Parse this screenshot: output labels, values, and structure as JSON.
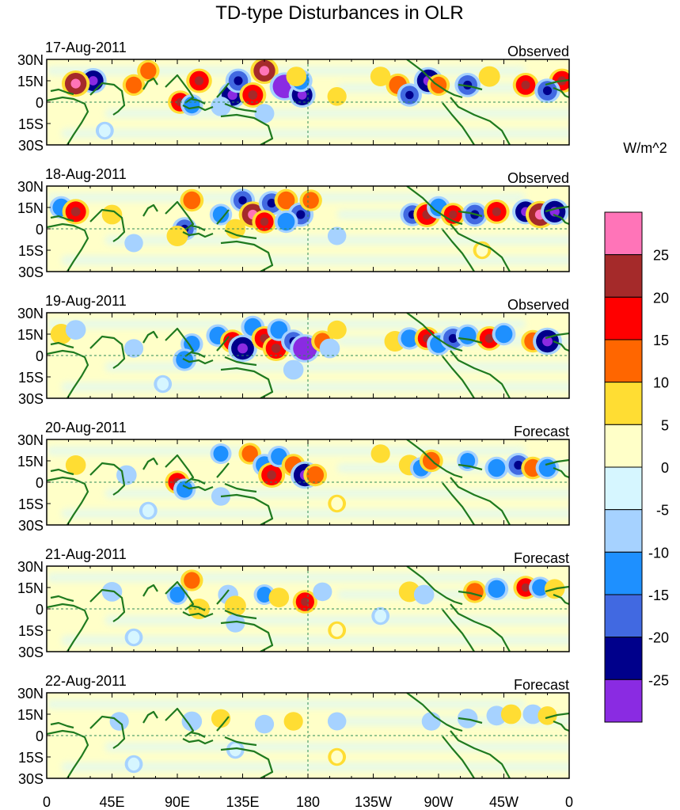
{
  "chart_data": {
    "type": "heatmap",
    "title": "TD-type Disturbances in OLR",
    "colorbar": {
      "units": "W/m^2",
      "tick_labels": [
        "25",
        "20",
        "15",
        "10",
        "5",
        "0",
        "-5",
        "-10",
        "-15",
        "-20",
        "-25"
      ],
      "levels": [
        {
          "range": "> 25",
          "color": "#ff74b8"
        },
        {
          "range": "20 to 25",
          "color": "#a52a2a"
        },
        {
          "range": "15 to 20",
          "color": "#ff0000"
        },
        {
          "range": "10 to 15",
          "color": "#ff6600"
        },
        {
          "range": "5 to 10",
          "color": "#ffdd33"
        },
        {
          "range": "0 to 5",
          "color": "#ffffc8"
        },
        {
          "range": "-5 to 0",
          "color": "#d6f6ff"
        },
        {
          "range": "-10 to -5",
          "color": "#a6d2ff"
        },
        {
          "range": "-15 to -10",
          "color": "#1e90ff"
        },
        {
          "range": "-20 to -15",
          "color": "#4169e1"
        },
        {
          "range": "-25 to -20",
          "color": "#00008b"
        },
        {
          "range": "< -25",
          "color": "#8a2be2"
        }
      ]
    },
    "x_ticks": [
      "0",
      "45E",
      "90E",
      "135E",
      "180",
      "135W",
      "90W",
      "45W",
      "0"
    ],
    "y_ticks": [
      "30N",
      "15N",
      "0",
      "15S",
      "30S"
    ],
    "lon_range": [
      0,
      360
    ],
    "lat_range": [
      -30,
      30
    ],
    "panels": [
      {
        "date": "17-Aug-2011",
        "kind": "Observed",
        "cells": [
          [
            32,
            15,
            -20
          ],
          [
            20,
            13,
            22
          ],
          [
            60,
            12,
            12
          ],
          [
            105,
            15,
            18
          ],
          [
            128,
            5,
            -22
          ],
          [
            132,
            15,
            -18
          ],
          [
            142,
            5,
            20
          ],
          [
            150,
            22,
            22
          ],
          [
            164,
            11,
            -26
          ],
          [
            176,
            5,
            -20
          ],
          [
            175,
            15,
            -14
          ],
          [
            242,
            12,
            15
          ],
          [
            250,
            5,
            -16
          ],
          [
            263,
            15,
            -24
          ],
          [
            270,
            12,
            12
          ],
          [
            290,
            12,
            -18
          ],
          [
            330,
            12,
            18
          ],
          [
            355,
            15,
            18
          ],
          [
            345,
            8,
            -18
          ],
          [
            92,
            0,
            16
          ],
          [
            100,
            -2,
            -12
          ],
          [
            120,
            -3,
            -8
          ],
          [
            70,
            22,
            12
          ],
          [
            150,
            -8,
            -7
          ],
          [
            200,
            4,
            6
          ],
          [
            40,
            -20,
            -4
          ],
          [
            230,
            18,
            8
          ],
          [
            305,
            18,
            10
          ],
          [
            172,
            18,
            8
          ]
        ]
      },
      {
        "date": "18-Aug-2011",
        "kind": "Observed",
        "cells": [
          [
            10,
            15,
            -14
          ],
          [
            20,
            12,
            20
          ],
          [
            45,
            10,
            8
          ],
          [
            100,
            20,
            14
          ],
          [
            120,
            10,
            -12
          ],
          [
            135,
            20,
            -16
          ],
          [
            142,
            10,
            22
          ],
          [
            155,
            18,
            -18
          ],
          [
            150,
            5,
            16
          ],
          [
            165,
            20,
            14
          ],
          [
            175,
            10,
            -18
          ],
          [
            182,
            20,
            12
          ],
          [
            165,
            5,
            -14
          ],
          [
            252,
            10,
            -16
          ],
          [
            262,
            10,
            20
          ],
          [
            270,
            15,
            -14
          ],
          [
            280,
            10,
            16
          ],
          [
            295,
            10,
            -18
          ],
          [
            310,
            12,
            18
          ],
          [
            330,
            12,
            -20
          ],
          [
            340,
            10,
            24
          ],
          [
            350,
            12,
            -22
          ],
          [
            95,
            0,
            -16
          ],
          [
            90,
            -5,
            10
          ],
          [
            130,
            0,
            8
          ],
          [
            60,
            -10,
            -5
          ],
          [
            300,
            -15,
            4
          ],
          [
            200,
            -5,
            -5
          ]
        ]
      },
      {
        "date": "19-Aug-2011",
        "kind": "Observed",
        "cells": [
          [
            10,
            15,
            10
          ],
          [
            20,
            18,
            -8
          ],
          [
            100,
            8,
            -12
          ],
          [
            95,
            -3,
            -14
          ],
          [
            118,
            14,
            -14
          ],
          [
            128,
            10,
            16
          ],
          [
            135,
            5,
            -24
          ],
          [
            142,
            20,
            -14
          ],
          [
            150,
            12,
            18
          ],
          [
            158,
            5,
            20
          ],
          [
            160,
            18,
            -14
          ],
          [
            170,
            10,
            -16
          ],
          [
            178,
            5,
            -26
          ],
          [
            190,
            10,
            12
          ],
          [
            195,
            5,
            -8
          ],
          [
            240,
            10,
            10
          ],
          [
            250,
            12,
            -14
          ],
          [
            262,
            12,
            16
          ],
          [
            270,
            8,
            -14
          ],
          [
            280,
            12,
            -18
          ],
          [
            290,
            14,
            -14
          ],
          [
            305,
            12,
            18
          ],
          [
            315,
            15,
            -14
          ],
          [
            335,
            10,
            14
          ],
          [
            345,
            10,
            -24
          ],
          [
            60,
            5,
            -6
          ],
          [
            170,
            -10,
            -8
          ],
          [
            80,
            -20,
            -4
          ],
          [
            200,
            18,
            6
          ]
        ]
      },
      {
        "date": "20-Aug-2011",
        "kind": "Forecast",
        "cells": [
          [
            20,
            12,
            8
          ],
          [
            55,
            5,
            -8
          ],
          [
            90,
            0,
            16
          ],
          [
            95,
            -5,
            -12
          ],
          [
            120,
            20,
            -10
          ],
          [
            140,
            20,
            12
          ],
          [
            150,
            12,
            -14
          ],
          [
            155,
            5,
            20
          ],
          [
            160,
            18,
            -12
          ],
          [
            170,
            12,
            14
          ],
          [
            178,
            5,
            -24
          ],
          [
            185,
            5,
            14
          ],
          [
            250,
            12,
            10
          ],
          [
            258,
            10,
            -12
          ],
          [
            265,
            15,
            14
          ],
          [
            290,
            15,
            -10
          ],
          [
            310,
            10,
            -14
          ],
          [
            325,
            12,
            -18
          ],
          [
            335,
            10,
            14
          ],
          [
            345,
            10,
            -14
          ],
          [
            120,
            -10,
            -6
          ],
          [
            70,
            -20,
            -4
          ],
          [
            200,
            -15,
            4
          ],
          [
            230,
            20,
            6
          ]
        ]
      },
      {
        "date": "21-Aug-2011",
        "kind": "Forecast",
        "cells": [
          [
            45,
            12,
            -8
          ],
          [
            90,
            10,
            -10
          ],
          [
            100,
            20,
            12
          ],
          [
            105,
            0,
            10
          ],
          [
            125,
            10,
            -8
          ],
          [
            130,
            2,
            10
          ],
          [
            150,
            10,
            -10
          ],
          [
            160,
            8,
            8
          ],
          [
            178,
            5,
            16
          ],
          [
            190,
            12,
            -6
          ],
          [
            250,
            12,
            10
          ],
          [
            260,
            10,
            -8
          ],
          [
            295,
            12,
            14
          ],
          [
            310,
            14,
            -14
          ],
          [
            330,
            15,
            16
          ],
          [
            340,
            15,
            -12
          ],
          [
            350,
            14,
            8
          ],
          [
            130,
            -10,
            -6
          ],
          [
            200,
            -15,
            4
          ],
          [
            60,
            -20,
            -4
          ],
          [
            230,
            -5,
            -4
          ]
        ]
      },
      {
        "date": "22-Aug-2011",
        "kind": "Forecast",
        "cells": [
          [
            50,
            10,
            -6
          ],
          [
            100,
            10,
            -8
          ],
          [
            120,
            12,
            6
          ],
          [
            150,
            8,
            -6
          ],
          [
            170,
            10,
            6
          ],
          [
            200,
            10,
            -5
          ],
          [
            265,
            10,
            -6
          ],
          [
            290,
            12,
            -8
          ],
          [
            310,
            14,
            -8
          ],
          [
            320,
            15,
            8
          ],
          [
            335,
            15,
            -8
          ],
          [
            345,
            14,
            6
          ],
          [
            130,
            -10,
            -4
          ],
          [
            200,
            -15,
            4
          ],
          [
            60,
            -20,
            -4
          ]
        ]
      }
    ]
  }
}
